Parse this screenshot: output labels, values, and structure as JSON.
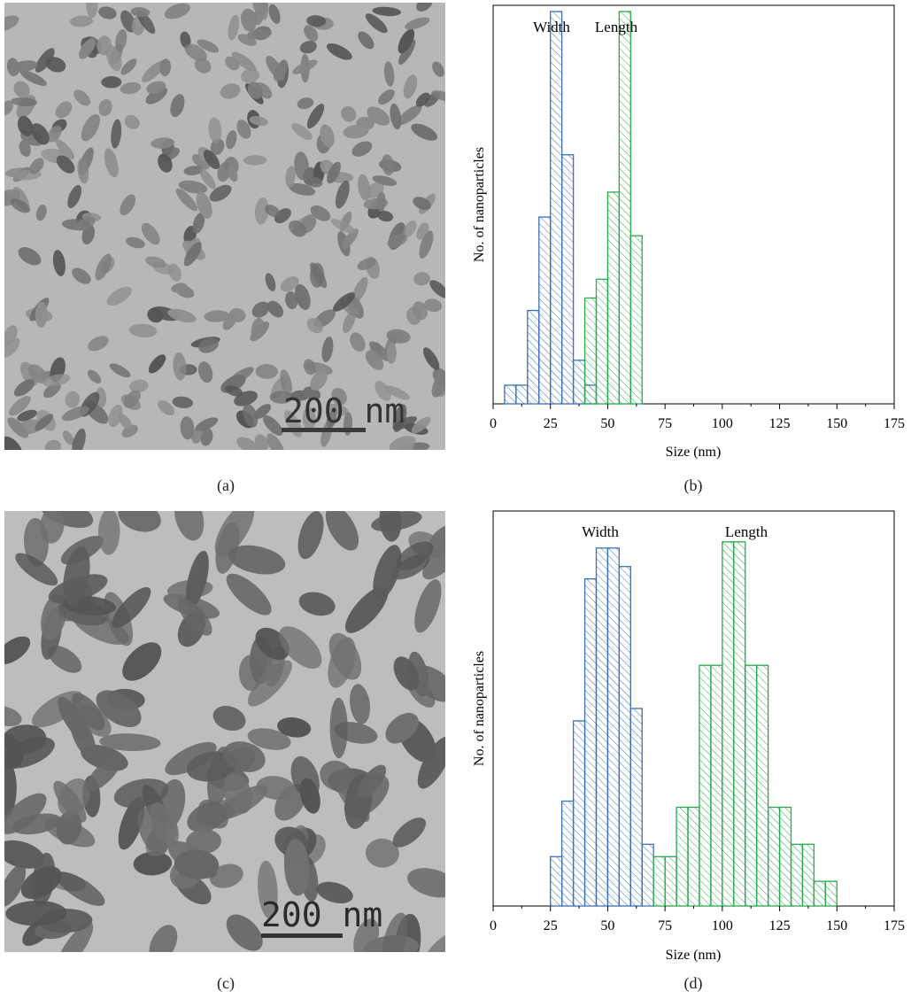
{
  "panels": {
    "a": {
      "label": "(a)",
      "scalebar": "200 nm"
    },
    "b": {
      "label": "(b)"
    },
    "c": {
      "label": "(c)",
      "scalebar": "200 nm"
    },
    "d": {
      "label": "(d)"
    }
  },
  "colors": {
    "width_series": "#3d6fb6",
    "length_series": "#2aa84e",
    "axis": "#000000"
  },
  "chart_data": [
    {
      "type": "bar",
      "panel": "b",
      "xlabel": "Size (nm)",
      "ylabel": "No. of nanoparticles",
      "xlim": [
        0,
        175
      ],
      "xticks": [
        0,
        25,
        50,
        75,
        100,
        125,
        150,
        175
      ],
      "ylim": [
        0,
        32
      ],
      "bin_width": 5,
      "series": [
        {
          "name": "Width",
          "bins": [
            5,
            10,
            15,
            20,
            25,
            30,
            35,
            40
          ],
          "values": [
            1.5,
            1.5,
            7.5,
            15,
            31.5,
            20,
            3.5,
            1.5
          ]
        },
        {
          "name": "Length",
          "bins": [
            40,
            45,
            50,
            55,
            60
          ],
          "values": [
            8.5,
            10,
            17,
            31.5,
            13.5
          ]
        }
      ]
    },
    {
      "type": "bar",
      "panel": "d",
      "xlabel": "Size (nm)",
      "ylabel": "No. of nanoparticles",
      "xlim": [
        0,
        175
      ],
      "xticks": [
        0,
        25,
        50,
        75,
        100,
        125,
        150,
        175
      ],
      "ylim": [
        0,
        32
      ],
      "bin_width": 5,
      "series": [
        {
          "name": "Width",
          "bins": [
            25,
            30,
            35,
            40,
            45,
            50,
            55,
            60,
            65
          ],
          "values": [
            4,
            8.5,
            15,
            26.5,
            29,
            29,
            27.5,
            16,
            5
          ]
        },
        {
          "name": "Length",
          "bins": [
            70,
            75,
            80,
            85,
            90,
            95,
            100,
            105,
            110,
            115,
            120,
            125,
            130,
            135,
            140,
            145
          ],
          "values": [
            4,
            4,
            8,
            8,
            19.5,
            19.5,
            29.5,
            29.5,
            19.5,
            19.5,
            8,
            8,
            5,
            5,
            2,
            2
          ]
        }
      ]
    }
  ]
}
